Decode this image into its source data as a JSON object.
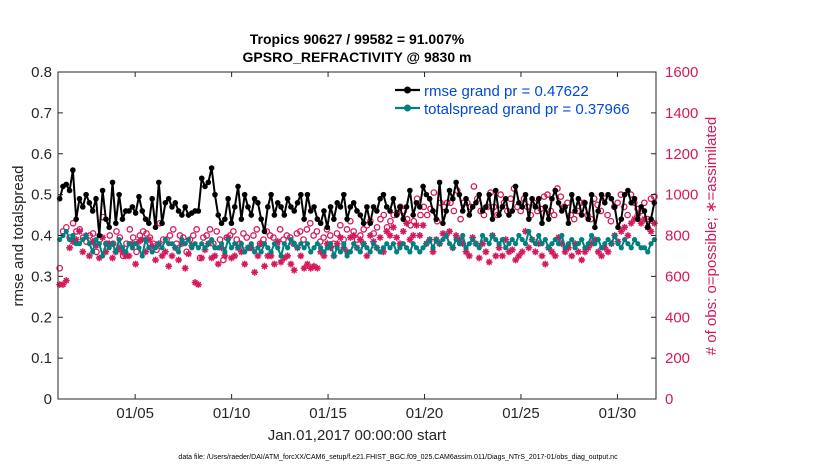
{
  "chart_data": {
    "type": "line",
    "title": "Tropics 90627 / 99582 = 91.007%",
    "subtitle": "GPSRO_REFRACTIVITY @ 9830 m",
    "xlabel": "Jan.01,2017 00:00:00 start",
    "ylabel": "rmse and totalspread",
    "ylabel_right": "# of obs: o=possible; ∗=assimilated",
    "footnote": "data file: /Users/raeder/DAI/ATM_forcXX/CAM6_setup/f.e21.FHIST_BGC.f09_025.CAM6assim.011/Diags_NTrS_2017-01/obs_diag_output.nc",
    "xlim": [
      1,
      32
    ],
    "ylim": [
      0,
      0.8
    ],
    "ylim_right": [
      0,
      1600
    ],
    "x_ticks": [
      5,
      10,
      15,
      20,
      25,
      30
    ],
    "x_tick_labels": [
      "01/05",
      "01/10",
      "01/15",
      "01/20",
      "01/25",
      "01/30"
    ],
    "y_ticks": [
      "0",
      "0.1",
      "0.2",
      "0.3",
      "0.4",
      "0.5",
      "0.6",
      "0.7",
      "0.8"
    ],
    "y_ticks_right": [
      "0",
      "200",
      "400",
      "600",
      "800",
      "1000",
      "1200",
      "1400",
      "1600"
    ],
    "legend_position": "top-right",
    "colors": {
      "rmse": "#000000",
      "spread": "#008080",
      "counts": "#d6185c",
      "legend_text": "#0047e0"
    },
    "series": [
      {
        "name": "rmse grand pr = 0.47622",
        "axis": "left",
        "marker": "star",
        "values": [
          0.49,
          0.52,
          0.525,
          0.51,
          0.56,
          0.44,
          0.49,
          0.47,
          0.5,
          0.48,
          0.46,
          0.49,
          0.4,
          0.51,
          0.44,
          0.42,
          0.53,
          0.43,
          0.5,
          0.44,
          0.46,
          0.46,
          0.47,
          0.455,
          0.495,
          0.46,
          0.44,
          0.43,
          0.49,
          0.42,
          0.53,
          0.43,
          0.48,
          0.49,
          0.47,
          0.48,
          0.46,
          0.45,
          0.47,
          0.45,
          0.455,
          0.46,
          0.46,
          0.54,
          0.52,
          0.53,
          0.565,
          0.5,
          0.45,
          0.43,
          0.44,
          0.49,
          0.43,
          0.47,
          0.52,
          0.44,
          0.5,
          0.47,
          0.45,
          0.49,
          0.48,
          0.44,
          0.41,
          0.47,
          0.5,
          0.45,
          0.48,
          0.47,
          0.45,
          0.49,
          0.47,
          0.46,
          0.48,
          0.5,
          0.44,
          0.5,
          0.46,
          0.47,
          0.44,
          0.43,
          0.46,
          0.42,
          0.47,
          0.44,
          0.48,
          0.47,
          0.5,
          0.44,
          0.47,
          0.48,
          0.46,
          0.45,
          0.43,
          0.47,
          0.43,
          0.47,
          0.46,
          0.49,
          0.5,
          0.47,
          0.46,
          0.49,
          0.45,
          0.47,
          0.44,
          0.47,
          0.51,
          0.45,
          0.48,
          0.47,
          0.52,
          0.5,
          0.49,
          0.46,
          0.44,
          0.53,
          0.43,
          0.46,
          0.51,
          0.49,
          0.53,
          0.5,
          0.46,
          0.49,
          0.45,
          0.47,
          0.48,
          0.5,
          0.46,
          0.47,
          0.5,
          0.44,
          0.51,
          0.45,
          0.47,
          0.49,
          0.45,
          0.46,
          0.52,
          0.48,
          0.47,
          0.5,
          0.44,
          0.49,
          0.47,
          0.49,
          0.43,
          0.47,
          0.44,
          0.49,
          0.51,
          0.48,
          0.46,
          0.47,
          0.43,
          0.5,
          0.46,
          0.49,
          0.45,
          0.48,
          0.44,
          0.5,
          0.42,
          0.46,
          0.5,
          0.48,
          0.5,
          0.49,
          0.47,
          0.42,
          0.44,
          0.5,
          0.51,
          0.48,
          0.49,
          0.44,
          0.47,
          0.46,
          0.42,
          0.44,
          0.48
        ]
      },
      {
        "name": "totalspread grand pr = 0.37966",
        "axis": "left",
        "marker": "circle-filled",
        "values": [
          0.39,
          0.4,
          0.41,
          0.39,
          0.4,
          0.38,
          0.38,
          0.39,
          0.4,
          0.38,
          0.36,
          0.39,
          0.38,
          0.35,
          0.38,
          0.37,
          0.38,
          0.36,
          0.39,
          0.37,
          0.36,
          0.38,
          0.37,
          0.38,
          0.37,
          0.35,
          0.39,
          0.37,
          0.36,
          0.37,
          0.38,
          0.37,
          0.39,
          0.38,
          0.38,
          0.37,
          0.36,
          0.39,
          0.38,
          0.39,
          0.37,
          0.38,
          0.37,
          0.38,
          0.37,
          0.38,
          0.39,
          0.37,
          0.37,
          0.38,
          0.36,
          0.39,
          0.37,
          0.38,
          0.37,
          0.38,
          0.36,
          0.37,
          0.38,
          0.36,
          0.37,
          0.36,
          0.38,
          0.37,
          0.36,
          0.38,
          0.37,
          0.35,
          0.38,
          0.37,
          0.39,
          0.38,
          0.37,
          0.38,
          0.37,
          0.38,
          0.36,
          0.37,
          0.38,
          0.37,
          0.36,
          0.37,
          0.38,
          0.35,
          0.37,
          0.36,
          0.38,
          0.35,
          0.36,
          0.38,
          0.37,
          0.36,
          0.38,
          0.37,
          0.36,
          0.38,
          0.37,
          0.36,
          0.37,
          0.38,
          0.37,
          0.38,
          0.36,
          0.37,
          0.38,
          0.37,
          0.36,
          0.38,
          0.37,
          0.36,
          0.37,
          0.38,
          0.39,
          0.37,
          0.39,
          0.38,
          0.39,
          0.4,
          0.38,
          0.37,
          0.39,
          0.38,
          0.4,
          0.37,
          0.38,
          0.39,
          0.38,
          0.37,
          0.4,
          0.39,
          0.38,
          0.4,
          0.39,
          0.38,
          0.39,
          0.37,
          0.38,
          0.39,
          0.38,
          0.4,
          0.39,
          0.38,
          0.41,
          0.39,
          0.38,
          0.4,
          0.38,
          0.39,
          0.37,
          0.38,
          0.39,
          0.38,
          0.4,
          0.37,
          0.38,
          0.39,
          0.37,
          0.38,
          0.39,
          0.37,
          0.38,
          0.4,
          0.38,
          0.39,
          0.37,
          0.38,
          0.39,
          0.38,
          0.4,
          0.38,
          0.37,
          0.39,
          0.38,
          0.37,
          0.39,
          0.38,
          0.37,
          0.37,
          0.36,
          0.38,
          0.39
        ]
      },
      {
        "name": "possible",
        "axis": "right",
        "marker": "open-circle",
        "values": [
          640,
          820,
          840,
          790,
          860,
          820,
          830,
          790,
          770,
          800,
          810,
          720,
          780,
          890,
          760,
          800,
          760,
          820,
          790,
          700,
          760,
          830,
          790,
          720,
          800,
          820,
          810,
          790,
          760,
          730,
          860,
          780,
          780,
          800,
          830,
          760,
          800,
          790,
          720,
          780,
          800,
          830,
          690,
          790,
          800,
          830,
          760,
          820,
          780,
          680,
          790,
          800,
          820,
          780,
          760,
          810,
          790,
          740,
          800,
          830,
          760,
          780,
          820,
          800,
          790,
          760,
          830,
          780,
          800,
          790,
          760,
          810,
          820,
          780,
          830,
          860,
          800,
          820,
          770,
          790,
          830,
          800,
          760,
          810,
          850,
          780,
          830,
          870,
          820,
          780,
          800,
          830,
          850,
          870,
          810,
          840,
          880,
          900,
          840,
          870,
          900,
          910,
          940,
          920,
          880,
          850,
          870,
          980,
          900,
          940,
          900,
          930,
          1010,
          870,
          960,
          940,
          960,
          960,
          920,
          1020,
          880,
          960,
          960,
          940,
          1040,
          980,
          920,
          900,
          940,
          1010,
          940,
          900,
          1000,
          960,
          920,
          980,
          1030,
          940,
          920,
          980,
          940,
          900,
          960,
          920,
          930,
          990,
          1000,
          920,
          900,
          1030,
          990,
          940,
          960,
          900,
          880,
          920,
          960,
          960,
          900,
          880,
          980,
          950,
          920,
          980,
          900,
          870,
          940,
          960,
          1000,
          940,
          900,
          1000,
          960,
          930,
          920,
          960,
          880,
          980,
          990
        ]
      },
      {
        "name": "assimilated",
        "axis": "right",
        "marker": "star",
        "values": [
          560,
          560,
          580,
          740,
          770,
          780,
          820,
          720,
          800,
          700,
          770,
          750,
          690,
          790,
          720,
          760,
          690,
          720,
          740,
          720,
          700,
          700,
          760,
          660,
          770,
          780,
          720,
          780,
          750,
          680,
          760,
          700,
          720,
          650,
          700,
          740,
          680,
          760,
          640,
          710,
          750,
          570,
          560,
          690,
          730,
          760,
          690,
          700,
          660,
          740,
          700,
          790,
          690,
          700,
          740,
          720,
          660,
          740,
          740,
          620,
          700,
          760,
          650,
          700,
          700,
          660,
          770,
          670,
          690,
          700,
          660,
          630,
          740,
          700,
          640,
          660,
          640,
          650,
          640,
          720,
          700,
          760,
          740,
          700,
          760,
          790,
          740,
          720,
          790,
          800,
          740,
          780,
          760,
          700,
          800,
          770,
          740,
          790,
          720,
          820,
          800,
          840,
          790,
          760,
          820,
          860,
          780,
          800,
          850,
          800,
          850,
          760,
          780,
          720,
          780,
          760,
          810,
          800,
          820,
          740,
          800,
          780,
          760,
          720,
          700,
          790,
          760,
          690,
          760,
          720,
          670,
          800,
          700,
          740,
          700,
          780,
          720,
          730,
          680,
          700,
          720,
          820,
          740,
          780,
          720,
          760,
          700,
          660,
          740,
          720,
          700,
          790,
          760,
          720,
          740,
          700,
          760,
          720,
          680,
          720,
          740,
          760,
          780,
          720,
          700,
          740,
          720,
          760,
          800,
          770,
          820,
          840,
          800,
          860,
          880,
          900,
          860,
          880,
          840,
          820,
          860
        ]
      }
    ]
  }
}
